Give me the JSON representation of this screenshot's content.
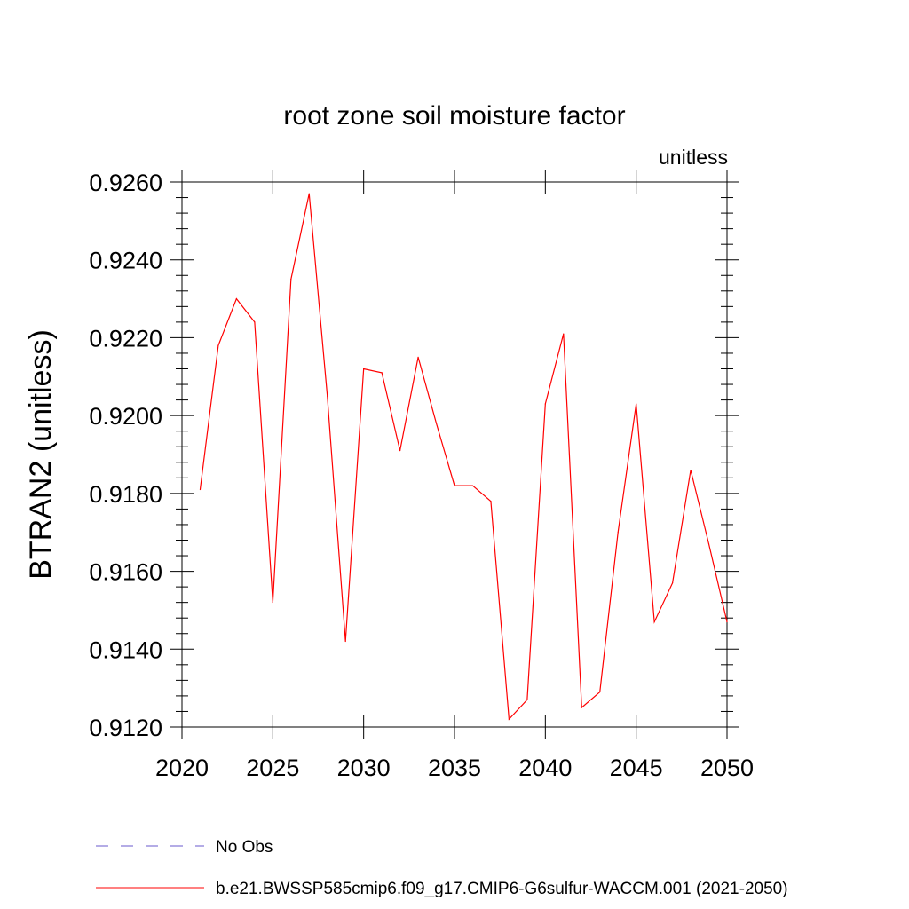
{
  "chart_data": {
    "type": "line",
    "title": "root zone soil moisture factor",
    "units_label": "unitless",
    "xlabel": "",
    "ylabel": "BTRAN2  (unitless)",
    "xlim": [
      2020,
      2050
    ],
    "ylim": [
      0.912,
      0.926
    ],
    "x_ticks": [
      2020,
      2025,
      2030,
      2035,
      2040,
      2045,
      2050
    ],
    "x_tick_labels": [
      "2020",
      "2025",
      "2030",
      "2035",
      "2040",
      "2045",
      "2050"
    ],
    "y_ticks": [
      0.912,
      0.914,
      0.916,
      0.918,
      0.92,
      0.922,
      0.924,
      0.926
    ],
    "y_tick_labels": [
      "0.9120",
      "0.9140",
      "0.9160",
      "0.9180",
      "0.9200",
      "0.9220",
      "0.9240",
      "0.9260"
    ],
    "grid": false,
    "legend_position": "bottom",
    "series": [
      {
        "name": "b.e21.BWSSP585cmip6.f09_g17.CMIP6-G6sulfur-WACCM.001 (2021-2050)",
        "color": "#ff0000",
        "style": "solid",
        "x": [
          2021,
          2022,
          2023,
          2024,
          2025,
          2026,
          2027,
          2028,
          2029,
          2030,
          2031,
          2032,
          2033,
          2034,
          2035,
          2036,
          2037,
          2038,
          2039,
          2040,
          2041,
          2042,
          2043,
          2044,
          2045,
          2046,
          2047,
          2048,
          2049,
          2050
        ],
        "y": [
          0.9181,
          0.9218,
          0.923,
          0.9224,
          0.9152,
          0.9235,
          0.9257,
          0.9205,
          0.9142,
          0.9212,
          0.9211,
          0.9191,
          0.9215,
          0.9198,
          0.9182,
          0.9182,
          0.9178,
          0.9122,
          0.9127,
          0.9203,
          0.9221,
          0.9125,
          0.9129,
          0.917,
          0.9203,
          0.9147,
          0.9157,
          0.9186,
          0.9167,
          0.9147
        ]
      }
    ],
    "legend": [
      {
        "label": "No Obs",
        "color": "#6a5acd",
        "style": "dashed"
      },
      {
        "label": "b.e21.BWSSP585cmip6.f09_g17.CMIP6-G6sulfur-WACCM.001 (2021-2050)",
        "color": "#ff0000",
        "style": "solid"
      }
    ]
  }
}
